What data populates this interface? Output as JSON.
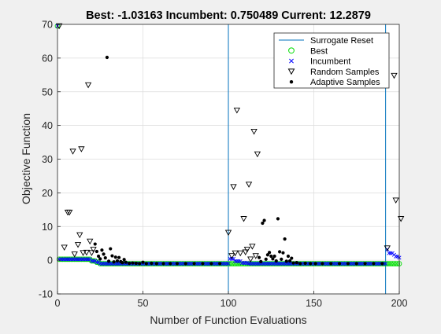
{
  "chart_data": {
    "type": "scatter",
    "title": "Best: -1.03163 Incumbent: 0.750489 Current: 12.2879",
    "xlabel": "Number of Function Evaluations",
    "ylabel": "Objective Function",
    "xlim": [
      0,
      200
    ],
    "ylim": [
      -10,
      70
    ],
    "xticks": [
      "0",
      "50",
      "100",
      "150",
      "200"
    ],
    "yticks": [
      "-10",
      "0",
      "10",
      "20",
      "30",
      "40",
      "50",
      "60",
      "70"
    ],
    "grid": true,
    "legend_position": "top-right",
    "colors": {
      "surrogate_reset": "#0072bd",
      "best": "#00dd00",
      "incumbent": "#0000ff",
      "random": "#000000",
      "adaptive": "#000000"
    },
    "surrogate_resets": [
      100,
      192
    ],
    "legend": [
      "Surrogate Reset",
      "Best",
      "Incumbent",
      "Random Samples",
      "Adaptive Samples"
    ],
    "series": [
      {
        "name": "Random Samples",
        "points": [
          [
            1,
            69.5
          ],
          [
            4,
            3.8
          ],
          [
            6,
            14.2
          ],
          [
            7,
            14.2
          ],
          [
            9,
            32.3
          ],
          [
            10,
            1.8
          ],
          [
            12,
            4.6
          ],
          [
            13,
            7.5
          ],
          [
            14,
            33
          ],
          [
            15,
            2.2
          ],
          [
            17,
            2.3
          ],
          [
            18,
            52
          ],
          [
            19,
            5.6
          ],
          [
            20,
            2.2
          ],
          [
            21,
            3.2
          ],
          [
            100,
            8.2
          ],
          [
            102,
            1.3
          ],
          [
            103,
            21.8
          ],
          [
            104,
            2.1
          ],
          [
            105,
            44.5
          ],
          [
            107,
            2.1
          ],
          [
            109,
            12.3
          ],
          [
            110,
            2.4
          ],
          [
            111,
            3.2
          ],
          [
            112,
            22.5
          ],
          [
            113,
            0.3
          ],
          [
            114,
            4.1
          ],
          [
            115,
            38.2
          ],
          [
            116,
            1.3
          ],
          [
            117,
            31.5
          ],
          [
            193,
            3.6
          ],
          [
            197,
            54.8
          ],
          [
            198,
            17.8
          ],
          [
            201,
            12.3
          ]
        ]
      },
      {
        "name": "Adaptive Samples",
        "points": [
          [
            22,
            4.8
          ],
          [
            23,
            2.6
          ],
          [
            24,
            1.2
          ],
          [
            25,
            0.4
          ],
          [
            26,
            3
          ],
          [
            27,
            1.8
          ],
          [
            28,
            0.7
          ],
          [
            29,
            60.2
          ],
          [
            30,
            -0.3
          ],
          [
            31,
            3.4
          ],
          [
            32,
            1.3
          ],
          [
            33,
            -0.5
          ],
          [
            34,
            0.9
          ],
          [
            35,
            -0.2
          ],
          [
            36,
            0.8
          ],
          [
            37,
            -0.4
          ],
          [
            38,
            -0.7
          ],
          [
            39,
            0.2
          ],
          [
            40,
            -0.6
          ],
          [
            42,
            -0.9
          ],
          [
            44,
            -0.8
          ],
          [
            46,
            -0.9
          ],
          [
            48,
            -1
          ],
          [
            50,
            -0.6
          ],
          [
            52,
            -1
          ],
          [
            55,
            -0.9
          ],
          [
            58,
            -1
          ],
          [
            62,
            -1
          ],
          [
            66,
            -1
          ],
          [
            70,
            -1
          ],
          [
            75,
            -1
          ],
          [
            80,
            -1
          ],
          [
            85,
            -1
          ],
          [
            90,
            -1
          ],
          [
            95,
            -1
          ],
          [
            118,
            0.8
          ],
          [
            119,
            -0.4
          ],
          [
            120,
            11
          ],
          [
            121,
            11.8
          ],
          [
            122,
            0.3
          ],
          [
            123,
            1.6
          ],
          [
            124,
            2.3
          ],
          [
            125,
            1.2
          ],
          [
            126,
            0.4
          ],
          [
            127,
            1.2
          ],
          [
            128,
            -0.2
          ],
          [
            129,
            12.3
          ],
          [
            130,
            2.5
          ],
          [
            131,
            0.3
          ],
          [
            132,
            2.2
          ],
          [
            133,
            6.3
          ],
          [
            134,
            -0.3
          ],
          [
            135,
            1.2
          ],
          [
            136,
            -0.2
          ],
          [
            137,
            0.6
          ],
          [
            138,
            -0.8
          ],
          [
            140,
            -0.7
          ],
          [
            142,
            -1
          ],
          [
            145,
            -0.9
          ],
          [
            148,
            -1
          ],
          [
            151,
            -1
          ],
          [
            155,
            -1
          ],
          [
            160,
            -1
          ],
          [
            165,
            -1
          ],
          [
            170,
            -1
          ],
          [
            175,
            -1
          ],
          [
            180,
            -1
          ],
          [
            185,
            -1
          ],
          [
            190,
            -1
          ]
        ]
      },
      {
        "name": "Best",
        "step": [
          [
            0,
            69.5
          ],
          [
            1,
            0.3
          ],
          [
            20,
            -0.2
          ],
          [
            23,
            -0.6
          ],
          [
            25,
            -1.03
          ],
          [
            100,
            -1.03
          ],
          [
            200,
            -1.03
          ]
        ]
      },
      {
        "name": "Incumbent",
        "step": [
          [
            0,
            69.5
          ],
          [
            1,
            0.3
          ],
          [
            20,
            -0.2
          ],
          [
            23,
            -0.6
          ],
          [
            25,
            -1.03
          ],
          [
            100,
            -1.03
          ],
          [
            101,
            0.4
          ],
          [
            104,
            -0.3
          ],
          [
            108,
            -0.8
          ],
          [
            112,
            -1.03
          ],
          [
            192,
            -1.03
          ],
          [
            193,
            3.2
          ],
          [
            194,
            2.1
          ],
          [
            197,
            1.6
          ],
          [
            198,
            1.1
          ],
          [
            200,
            0.75
          ]
        ]
      }
    ]
  }
}
